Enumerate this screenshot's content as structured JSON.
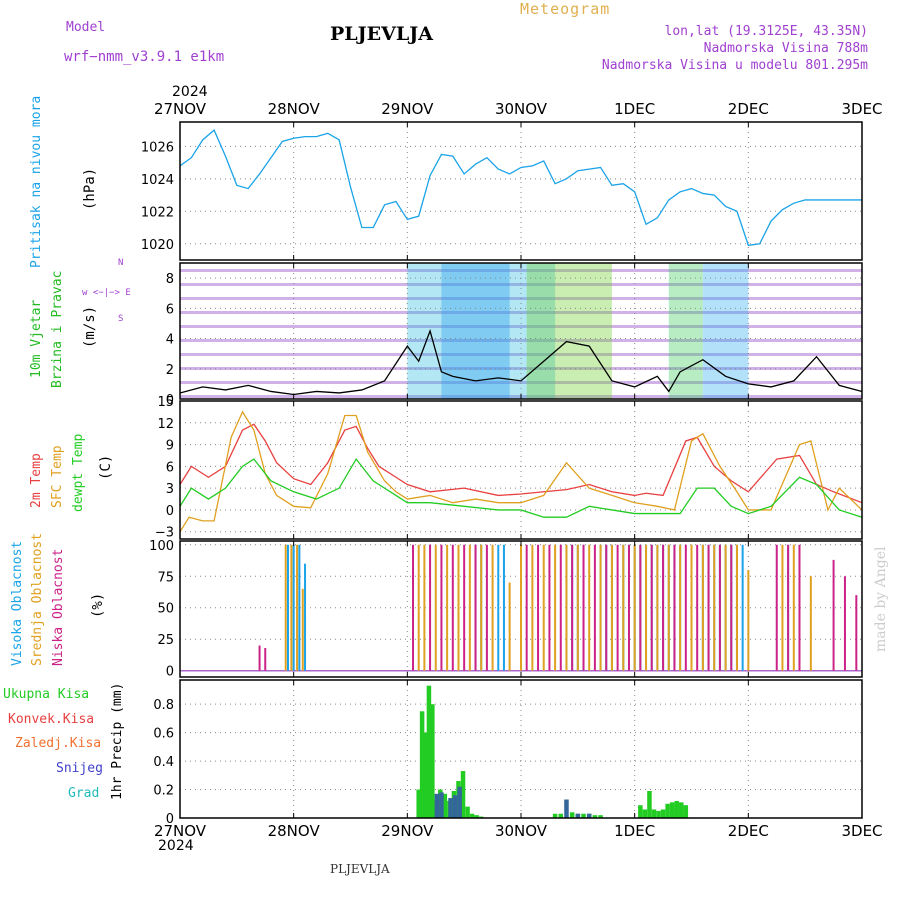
{
  "header": {
    "model_label": "Model",
    "model_name": "wrf−nmm_v3.9.1  e1km",
    "title": "PLJEVLJA",
    "subtitle": "Meteogram",
    "lonlat": "lon,lat (19.3125E, 43.35N)",
    "elevation": "Nadmorska Visina 788m",
    "model_elevation": "Nadmorska Visina u modelu 801.295m",
    "footer_station": "PLJEVLJA",
    "watermark": "made by Angel"
  },
  "colors": {
    "pressure": "#1aa3e8",
    "wind_label": "#22bb22",
    "temp2m": "#e84040",
    "sfc_temp": "#e0a020",
    "dewpt": "#22cc22",
    "high_cloud": "#1aa3e8",
    "mid_cloud": "#e0a020",
    "low_cloud": "#cc2288",
    "precip_total": "#22cc22",
    "precip_conv": "#e84040",
    "precip_frz": "#f07030",
    "snow": "#4040cc",
    "grad": "#22bbbb",
    "header_purple": "#a040d0",
    "header_orange": "#e0b050"
  },
  "xaxis": {
    "year_top": "2024",
    "year_bottom": "2024",
    "ticks": [
      "27NOV",
      "28NOV",
      "29NOV",
      "30NOV",
      "1DEC",
      "2DEC",
      "3DEC"
    ]
  },
  "chart_data": [
    {
      "type": "line",
      "name": "pressure",
      "ylabel_main": "Pritisak na nivou mora",
      "ylabel_unit": "(hPa)",
      "ylim": [
        1019,
        1027.5
      ],
      "yticks": [
        "1020",
        "1022",
        "1024",
        "1026"
      ],
      "yticks_values": [
        1020,
        1022,
        1024,
        1026
      ],
      "series": [
        {
          "x": [
            0,
            0.1,
            0.2,
            0.3,
            0.4,
            0.5,
            0.6,
            0.7,
            0.8,
            0.9,
            1.0,
            1.1,
            1.2,
            1.3,
            1.4,
            1.5,
            1.6,
            1.7,
            1.8,
            1.9,
            2.0,
            2.1,
            2.2,
            2.3,
            2.4,
            2.5,
            2.6,
            2.7,
            2.8,
            2.9,
            3.0,
            3.1,
            3.2,
            3.3,
            3.4,
            3.5,
            3.6,
            3.7,
            3.8,
            3.9,
            4.0,
            4.1,
            4.2,
            4.3,
            4.4,
            4.5,
            4.6,
            4.7,
            4.8,
            4.9,
            5.0,
            5.1,
            5.2,
            5.3,
            5.4,
            5.5,
            5.6,
            5.7,
            5.8,
            5.9,
            6.0
          ],
          "y": [
            1024.8,
            1025.3,
            1026.4,
            1027.0,
            1025.4,
            1023.6,
            1023.4,
            1024.3,
            1025.3,
            1026.3,
            1026.5,
            1026.6,
            1026.6,
            1026.8,
            1026.4,
            1023.5,
            1021.0,
            1021.0,
            1022.4,
            1022.6,
            1021.5,
            1021.7,
            1024.2,
            1025.5,
            1025.4,
            1024.3,
            1024.9,
            1025.3,
            1024.6,
            1024.3,
            1024.7,
            1024.8,
            1025.1,
            1023.7,
            1024.0,
            1024.5,
            1024.6,
            1024.7,
            1023.6,
            1023.7,
            1023.2,
            1021.2,
            1021.6,
            1022.7,
            1023.2,
            1023.4,
            1023.1,
            1023.0,
            1022.3,
            1022.0,
            1019.9,
            1020.0,
            1021.4,
            1022.1,
            1022.5,
            1022.7,
            1022.7,
            1022.7,
            1022.7,
            1022.7,
            1022.7
          ]
        }
      ]
    },
    {
      "type": "line",
      "name": "wind",
      "ylabel_main": "10m Vjetar",
      "ylabel_sub": "Brzina i Pravac",
      "ylabel_unit": "(m/s)",
      "compass": "w <−|−> E",
      "compass_n": "N",
      "compass_s": "S",
      "ylim": [
        0,
        9
      ],
      "yticks": [
        "0",
        "2",
        "4",
        "6",
        "8"
      ],
      "yticks_values": [
        0,
        2,
        4,
        6,
        8
      ],
      "series": [
        {
          "x": [
            0,
            0.2,
            0.4,
            0.6,
            0.8,
            1.0,
            1.2,
            1.4,
            1.6,
            1.8,
            2.0,
            2.1,
            2.2,
            2.3,
            2.4,
            2.6,
            2.8,
            3.0,
            3.2,
            3.4,
            3.6,
            3.8,
            4.0,
            4.2,
            4.3,
            4.4,
            4.6,
            4.8,
            5.0,
            5.2,
            5.4,
            5.6,
            5.8,
            6.0
          ],
          "y": [
            0.4,
            0.8,
            0.6,
            0.9,
            0.5,
            0.3,
            0.5,
            0.4,
            0.6,
            1.2,
            3.5,
            2.5,
            4.5,
            1.8,
            1.5,
            1.2,
            1.4,
            1.2,
            2.5,
            3.8,
            3.5,
            1.2,
            0.8,
            1.5,
            0.5,
            1.8,
            2.6,
            1.5,
            1.0,
            0.8,
            1.2,
            2.8,
            0.9,
            0.5
          ]
        }
      ]
    },
    {
      "type": "line",
      "name": "temperature",
      "ylabel_a": "2m Temp",
      "ylabel_b": "SFC Temp",
      "ylabel_c": "dewpt Temp",
      "ylabel_unit": "(C)",
      "ylim": [
        -4,
        15
      ],
      "yticks": [
        "−3",
        "0",
        "3",
        "6",
        "9",
        "12",
        "15"
      ],
      "yticks_values": [
        -3,
        0,
        3,
        6,
        9,
        12,
        15
      ],
      "series": [
        {
          "x": [
            0,
            0.1,
            0.25,
            0.4,
            0.55,
            0.65,
            0.75,
            0.85,
            1.0,
            1.15,
            1.3,
            1.45,
            1.55,
            1.65,
            1.75,
            1.9,
            2.0,
            2.2,
            2.5,
            2.8,
            3.0,
            3.2,
            3.4,
            3.6,
            3.8,
            4.0,
            4.1,
            4.25,
            4.45,
            4.55,
            4.7,
            4.85,
            5.0,
            5.25,
            5.45,
            5.6,
            5.75,
            6.0
          ],
          "y": [
            3.5,
            6.0,
            4.5,
            6.0,
            11.0,
            11.8,
            9.5,
            6.5,
            4.3,
            3.5,
            6.5,
            11.0,
            11.5,
            8.5,
            6.0,
            4.5,
            3.5,
            2.5,
            3.0,
            2.0,
            2.2,
            2.5,
            2.8,
            3.5,
            2.5,
            2.0,
            2.3,
            2.0,
            9.5,
            10.0,
            6.0,
            4.0,
            2.5,
            7.0,
            7.5,
            3.5,
            2.5,
            1.0
          ]
        },
        {
          "x": [
            0,
            0.08,
            0.2,
            0.3,
            0.45,
            0.55,
            0.65,
            0.75,
            0.85,
            1.0,
            1.15,
            1.3,
            1.45,
            1.55,
            1.65,
            1.8,
            1.9,
            2.0,
            2.2,
            2.4,
            2.6,
            2.8,
            3.0,
            3.2,
            3.4,
            3.6,
            3.8,
            4.0,
            4.2,
            4.35,
            4.5,
            4.6,
            4.75,
            4.9,
            5.0,
            5.2,
            5.45,
            5.55,
            5.7,
            5.8,
            6.0
          ],
          "y": [
            -3.0,
            -1.0,
            -1.5,
            -1.5,
            10.0,
            13.5,
            11.0,
            5.0,
            2.0,
            0.5,
            0.3,
            5.0,
            13.0,
            13.0,
            8.0,
            4.0,
            2.5,
            1.5,
            2.0,
            1.0,
            1.5,
            1.0,
            1.0,
            2.0,
            6.5,
            3.0,
            2.0,
            1.0,
            0.5,
            0.0,
            9.5,
            10.5,
            6.0,
            2.5,
            0.0,
            0.0,
            9.0,
            9.5,
            0.0,
            3.0,
            0.0
          ]
        },
        {
          "x": [
            0,
            0.1,
            0.25,
            0.4,
            0.55,
            0.65,
            0.8,
            1.0,
            1.2,
            1.4,
            1.55,
            1.7,
            1.9,
            2.0,
            2.2,
            2.5,
            2.8,
            3.0,
            3.2,
            3.4,
            3.6,
            3.8,
            4.0,
            4.2,
            4.4,
            4.55,
            4.7,
            4.85,
            5.0,
            5.2,
            5.45,
            5.6,
            5.8,
            6.0
          ],
          "y": [
            0.5,
            3.0,
            1.5,
            3.0,
            6.0,
            7.0,
            4.0,
            2.5,
            1.5,
            3.0,
            7.0,
            4.0,
            2.0,
            1.0,
            1.0,
            0.5,
            0.0,
            0.0,
            -1.0,
            -1.0,
            0.5,
            0.0,
            -0.5,
            -0.5,
            -0.5,
            3.0,
            3.0,
            0.5,
            -0.5,
            0.5,
            4.5,
            3.5,
            0.0,
            -1.0
          ]
        }
      ]
    },
    {
      "type": "bar",
      "name": "cloud",
      "ylabel_a": "Visoka Oblacnost",
      "ylabel_b": "Srednja Oblacnost",
      "ylabel_c": "Niska  Oblacnost",
      "ylabel_unit": "(%)",
      "ylim": [
        -5,
        103
      ],
      "yticks": [
        "0",
        "25",
        "50",
        "75",
        "100"
      ],
      "yticks_values": [
        0,
        25,
        50,
        75,
        100
      ],
      "series": [
        {
          "name": "high",
          "x": [
            0.95,
            1.0,
            1.05,
            1.1,
            2.6,
            2.65,
            2.8,
            2.85,
            3.4,
            3.45,
            3.5,
            3.55,
            3.7,
            3.75,
            3.8,
            3.9,
            3.95,
            4.0,
            4.05,
            4.1,
            4.15,
            4.2,
            4.25,
            4.3,
            4.35,
            4.4,
            4.5,
            4.6,
            4.65,
            4.7,
            4.75,
            4.8,
            4.85,
            4.9,
            4.95,
            5.35
          ],
          "y": [
            100,
            100,
            100,
            85,
            100,
            100,
            100,
            100,
            100,
            100,
            100,
            100,
            100,
            100,
            100,
            100,
            100,
            100,
            100,
            100,
            100,
            100,
            100,
            100,
            100,
            100,
            100,
            100,
            100,
            100,
            100,
            100,
            100,
            100,
            100,
            100
          ]
        },
        {
          "name": "mid",
          "x": [
            0.93,
            0.98,
            1.03,
            1.08,
            2.1,
            2.15,
            2.25,
            2.35,
            2.45,
            2.55,
            2.65,
            2.75,
            2.9,
            3.0,
            3.1,
            3.2,
            3.3,
            3.4,
            3.5,
            3.6,
            3.7,
            3.8,
            3.9,
            4.0,
            4.1,
            4.2,
            4.3,
            4.4,
            4.5,
            4.6,
            4.7,
            4.8,
            4.9,
            5.0,
            5.3,
            5.4,
            5.55
          ],
          "y": [
            100,
            100,
            100,
            65,
            100,
            100,
            100,
            100,
            100,
            100,
            100,
            100,
            70,
            100,
            100,
            100,
            100,
            100,
            100,
            100,
            100,
            100,
            100,
            100,
            100,
            100,
            100,
            100,
            100,
            100,
            100,
            100,
            100,
            80,
            100,
            100,
            75
          ]
        },
        {
          "name": "low",
          "x": [
            0.7,
            0.75,
            2.05,
            2.2,
            2.3,
            2.4,
            2.5,
            2.6,
            2.7,
            3.05,
            3.15,
            3.25,
            3.35,
            3.45,
            3.55,
            3.65,
            3.75,
            3.85,
            3.95,
            4.05,
            4.15,
            4.25,
            4.35,
            4.45,
            4.55,
            4.65,
            4.75,
            4.85,
            5.25,
            5.35,
            5.45,
            5.75,
            5.85,
            5.95
          ],
          "y": [
            20,
            18,
            100,
            100,
            100,
            100,
            100,
            100,
            100,
            100,
            100,
            100,
            100,
            100,
            100,
            100,
            100,
            100,
            100,
            100,
            100,
            100,
            100,
            100,
            100,
            100,
            100,
            100,
            100,
            100,
            100,
            88,
            75,
            60
          ]
        }
      ]
    },
    {
      "type": "bar",
      "name": "precip",
      "ylabel_a": "Ukupna  Kisa",
      "ylabel_b": "Konvek.Kisa",
      "ylabel_c": "Zaledj.Kisa",
      "ylabel_d": "Snijeg",
      "ylabel_e": "Grad",
      "ylabel_unit": "1hr Precip (mm)",
      "ylim": [
        0,
        0.97
      ],
      "yticks": [
        "0",
        "0.2",
        "0.4",
        "0.6",
        "0.8"
      ],
      "yticks_values": [
        0,
        0.2,
        0.4,
        0.6,
        0.8
      ],
      "series": [
        {
          "name": "total",
          "x": [
            2.1,
            2.13,
            2.16,
            2.19,
            2.22,
            2.25,
            2.29,
            2.33,
            2.37,
            2.41,
            2.45,
            2.49,
            2.53,
            2.57,
            2.61,
            2.65,
            3.3,
            3.35,
            3.45,
            3.5,
            3.55,
            3.6,
            3.65,
            3.7,
            4.05,
            4.09,
            4.13,
            4.17,
            4.21,
            4.25,
            4.29,
            4.33,
            4.37,
            4.41,
            4.45
          ],
          "y": [
            0.2,
            0.75,
            0.6,
            0.93,
            0.8,
            0.12,
            0.2,
            0.17,
            0.12,
            0.19,
            0.26,
            0.33,
            0.08,
            0.03,
            0.02,
            0.01,
            0.03,
            0.03,
            0.04,
            0.03,
            0.03,
            0.03,
            0.02,
            0.02,
            0.09,
            0.06,
            0.19,
            0.06,
            0.05,
            0.06,
            0.1,
            0.11,
            0.12,
            0.11,
            0.09
          ]
        },
        {
          "name": "snow",
          "x": [
            2.26,
            2.3,
            2.38,
            2.42,
            2.46,
            3.4,
            3.5,
            3.6
          ],
          "y": [
            0.17,
            0.18,
            0.14,
            0.16,
            0.22,
            0.13,
            0.03,
            0.03
          ]
        }
      ]
    }
  ]
}
